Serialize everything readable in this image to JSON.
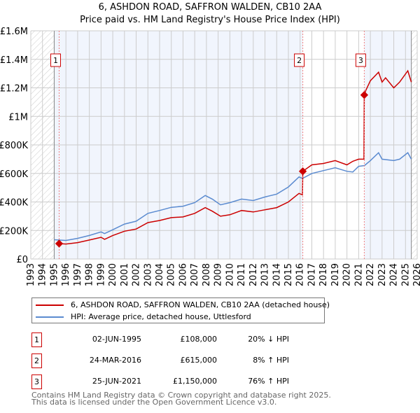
{
  "chart_data": {
    "type": "line",
    "title": "6, ASHDON ROAD, SAFFRON WALDEN, CB10 2AA",
    "subtitle": "Price paid vs. HM Land Registry's House Price Index (HPI)",
    "xlim": [
      1993,
      2026
    ],
    "ylim": [
      0,
      1600000
    ],
    "x_ticks": [
      "1993",
      "1994",
      "1995",
      "1996",
      "1997",
      "1998",
      "1999",
      "2000",
      "2001",
      "2002",
      "2003",
      "2004",
      "2005",
      "2006",
      "2007",
      "2008",
      "2009",
      "2010",
      "2011",
      "2012",
      "2013",
      "2014",
      "2015",
      "2016",
      "2017",
      "2018",
      "2019",
      "2020",
      "2021",
      "2022",
      "2023",
      "2024",
      "2025",
      "2026"
    ],
    "y_ticks": [
      {
        "v": 0,
        "label": "£0"
      },
      {
        "v": 200000,
        "label": "£200K"
      },
      {
        "v": 400000,
        "label": "£400K"
      },
      {
        "v": 600000,
        "label": "£600K"
      },
      {
        "v": 800000,
        "label": "£800K"
      },
      {
        "v": 1000000,
        "label": "£1M"
      },
      {
        "v": 1200000,
        "label": "£1.2M"
      },
      {
        "v": 1400000,
        "label": "£1.4M"
      },
      {
        "v": 1600000,
        "label": "£1.6M"
      }
    ],
    "data_range": [
      1995.0,
      2025.5
    ],
    "series": [
      {
        "name": "6, ASHDON ROAD, SAFFRON WALDEN, CB10 2AA (detached house)",
        "color": "#cc0000",
        "points": [
          [
            1995.42,
            108000
          ],
          [
            1996,
            105000
          ],
          [
            1997,
            115000
          ],
          [
            1998,
            133000
          ],
          [
            1999,
            152000
          ],
          [
            1999.3,
            138000
          ],
          [
            2000,
            165000
          ],
          [
            2001,
            195000
          ],
          [
            2002,
            210000
          ],
          [
            2003,
            255000
          ],
          [
            2004,
            270000
          ],
          [
            2005,
            290000
          ],
          [
            2006,
            295000
          ],
          [
            2007,
            320000
          ],
          [
            2007.9,
            360000
          ],
          [
            2008.5,
            335000
          ],
          [
            2009.2,
            300000
          ],
          [
            2010,
            310000
          ],
          [
            2011,
            340000
          ],
          [
            2012,
            330000
          ],
          [
            2013,
            345000
          ],
          [
            2014,
            360000
          ],
          [
            2015,
            400000
          ],
          [
            2015.9,
            460000
          ],
          [
            2016.2,
            450000
          ],
          [
            2016.23,
            615000
          ],
          [
            2017,
            660000
          ],
          [
            2018,
            670000
          ],
          [
            2019,
            690000
          ],
          [
            2020,
            660000
          ],
          [
            2020.5,
            685000
          ],
          [
            2021,
            700000
          ],
          [
            2021.45,
            700000
          ],
          [
            2021.48,
            1150000
          ],
          [
            2021.6,
            1180000
          ],
          [
            2022,
            1250000
          ],
          [
            2022.7,
            1310000
          ],
          [
            2023,
            1240000
          ],
          [
            2023.3,
            1270000
          ],
          [
            2024,
            1200000
          ],
          [
            2024.5,
            1240000
          ],
          [
            2025.2,
            1320000
          ],
          [
            2025.5,
            1240000
          ]
        ]
      },
      {
        "name": "HPI: Average price, detached house, Uttlesford",
        "color": "#5b8bd0",
        "points": [
          [
            1995.0,
            135000
          ],
          [
            1996,
            130000
          ],
          [
            1997,
            145000
          ],
          [
            1998,
            165000
          ],
          [
            1999,
            190000
          ],
          [
            1999.3,
            178000
          ],
          [
            2000,
            205000
          ],
          [
            2001,
            245000
          ],
          [
            2002,
            265000
          ],
          [
            2003,
            320000
          ],
          [
            2004,
            340000
          ],
          [
            2005,
            362000
          ],
          [
            2006,
            370000
          ],
          [
            2007,
            395000
          ],
          [
            2007.9,
            445000
          ],
          [
            2008.5,
            420000
          ],
          [
            2009.2,
            380000
          ],
          [
            2010,
            395000
          ],
          [
            2011,
            420000
          ],
          [
            2012,
            410000
          ],
          [
            2013,
            435000
          ],
          [
            2014,
            455000
          ],
          [
            2015,
            505000
          ],
          [
            2015.9,
            575000
          ],
          [
            2016.2,
            565000
          ],
          [
            2017,
            600000
          ],
          [
            2018,
            620000
          ],
          [
            2019,
            640000
          ],
          [
            2020,
            615000
          ],
          [
            2020.5,
            610000
          ],
          [
            2021,
            650000
          ],
          [
            2021.5,
            655000
          ],
          [
            2022,
            690000
          ],
          [
            2022.7,
            745000
          ],
          [
            2023,
            700000
          ],
          [
            2024,
            690000
          ],
          [
            2024.5,
            700000
          ],
          [
            2025.2,
            745000
          ],
          [
            2025.5,
            700000
          ]
        ]
      }
    ],
    "sales": [
      {
        "num": "1",
        "x": 1995.42,
        "y": 108000,
        "date": "02-JUN-1995",
        "price": "£108,000",
        "hpi": "20% ↓ HPI"
      },
      {
        "num": "2",
        "x": 2016.23,
        "y": 615000,
        "date": "24-MAR-2016",
        "price": "£615,000",
        "hpi": "8% ↑ HPI"
      },
      {
        "num": "3",
        "x": 2021.48,
        "y": 1150000,
        "date": "25-JUN-2021",
        "price": "£1,150,000",
        "hpi": "76% ↑ HPI"
      }
    ],
    "shaded_ranges": [
      [
        1995.0,
        2016.23
      ],
      [
        2021.48,
        2025.5
      ]
    ]
  },
  "legend": {
    "items": [
      "6, ASHDON ROAD, SAFFRON WALDEN, CB10 2AA (detached house)",
      "HPI: Average price, detached house, Uttlesford"
    ]
  },
  "footer": {
    "line1": "Contains HM Land Registry data © Crown copyright and database right 2025.",
    "line2": "This data is licensed under the Open Government Licence v3.0."
  }
}
